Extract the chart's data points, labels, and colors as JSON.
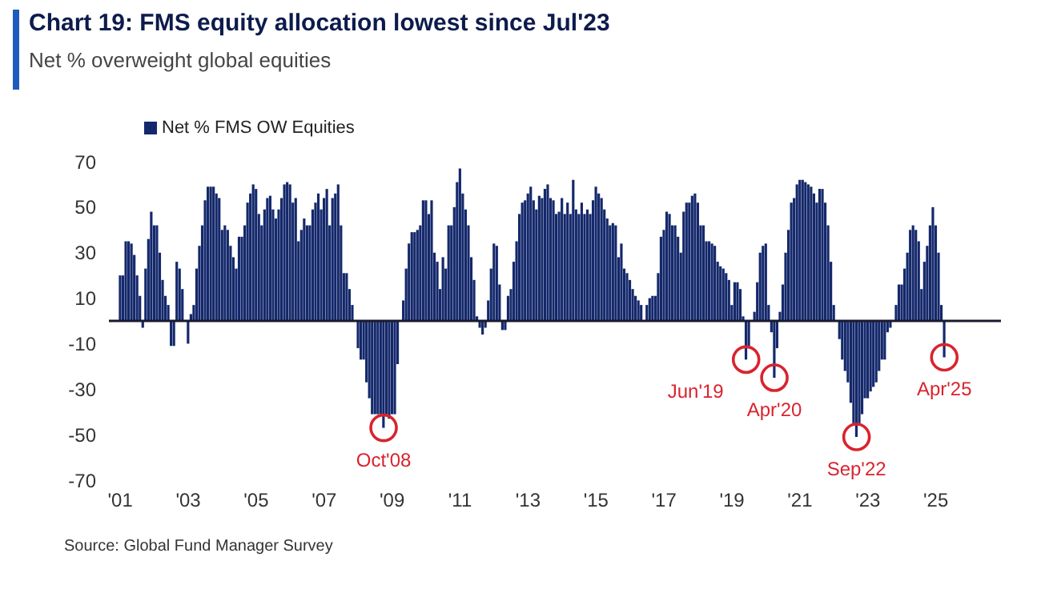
{
  "chart_data": {
    "type": "bar",
    "title": "Chart 19: FMS equity allocation lowest since Jul'23",
    "subtitle": "Net % overweight global equities",
    "x": [
      "2001-01",
      "2001-02",
      "2001-03",
      "2001-04",
      "2001-05",
      "2001-06",
      "2001-07",
      "2001-08",
      "2001-09",
      "2001-10",
      "2001-11",
      "2001-12",
      "2002-01",
      "2002-02",
      "2002-03",
      "2002-04",
      "2002-05",
      "2002-06",
      "2002-07",
      "2002-08",
      "2002-09",
      "2002-10",
      "2002-11",
      "2002-12",
      "2003-01",
      "2003-02",
      "2003-03",
      "2003-04",
      "2003-05",
      "2003-06",
      "2003-07",
      "2003-08",
      "2003-09",
      "2003-10",
      "2003-11",
      "2003-12",
      "2004-01",
      "2004-02",
      "2004-03",
      "2004-04",
      "2004-05",
      "2004-06",
      "2004-07",
      "2004-08",
      "2004-09",
      "2004-10",
      "2004-11",
      "2004-12",
      "2005-01",
      "2005-02",
      "2005-03",
      "2005-04",
      "2005-05",
      "2005-06",
      "2005-07",
      "2005-08",
      "2005-09",
      "2005-10",
      "2005-11",
      "2005-12",
      "2006-01",
      "2006-02",
      "2006-03",
      "2006-04",
      "2006-05",
      "2006-06",
      "2006-07",
      "2006-08",
      "2006-09",
      "2006-10",
      "2006-11",
      "2006-12",
      "2007-01",
      "2007-02",
      "2007-03",
      "2007-04",
      "2007-05",
      "2007-06",
      "2007-07",
      "2007-08",
      "2007-09",
      "2007-10",
      "2007-11",
      "2007-12",
      "2008-01",
      "2008-02",
      "2008-03",
      "2008-04",
      "2008-05",
      "2008-06",
      "2008-07",
      "2008-08",
      "2008-09",
      "2008-10",
      "2008-11",
      "2008-12",
      "2009-01",
      "2009-02",
      "2009-03",
      "2009-04",
      "2009-05",
      "2009-06",
      "2009-07",
      "2009-08",
      "2009-09",
      "2009-10",
      "2009-11",
      "2009-12",
      "2010-01",
      "2010-02",
      "2010-03",
      "2010-04",
      "2010-05",
      "2010-06",
      "2010-07",
      "2010-08",
      "2010-09",
      "2010-10",
      "2010-11",
      "2010-12",
      "2011-01",
      "2011-02",
      "2011-03",
      "2011-04",
      "2011-05",
      "2011-06",
      "2011-07",
      "2011-08",
      "2011-09",
      "2011-10",
      "2011-11",
      "2011-12",
      "2012-01",
      "2012-02",
      "2012-03",
      "2012-04",
      "2012-05",
      "2012-06",
      "2012-07",
      "2012-08",
      "2012-09",
      "2012-10",
      "2012-11",
      "2012-12",
      "2013-01",
      "2013-02",
      "2013-03",
      "2013-04",
      "2013-05",
      "2013-06",
      "2013-07",
      "2013-08",
      "2013-09",
      "2013-10",
      "2013-11",
      "2013-12",
      "2014-01",
      "2014-02",
      "2014-03",
      "2014-04",
      "2014-05",
      "2014-06",
      "2014-07",
      "2014-08",
      "2014-09",
      "2014-10",
      "2014-11",
      "2014-12",
      "2015-01",
      "2015-02",
      "2015-03",
      "2015-04",
      "2015-05",
      "2015-06",
      "2015-07",
      "2015-08",
      "2015-09",
      "2015-10",
      "2015-11",
      "2015-12",
      "2016-01",
      "2016-02",
      "2016-03",
      "2016-04",
      "2016-05",
      "2016-06",
      "2016-07",
      "2016-08",
      "2016-09",
      "2016-10",
      "2016-11",
      "2016-12",
      "2017-01",
      "2017-02",
      "2017-03",
      "2017-04",
      "2017-05",
      "2017-06",
      "2017-07",
      "2017-08",
      "2017-09",
      "2017-10",
      "2017-11",
      "2017-12",
      "2018-01",
      "2018-02",
      "2018-03",
      "2018-04",
      "2018-05",
      "2018-06",
      "2018-07",
      "2018-08",
      "2018-09",
      "2018-10",
      "2018-11",
      "2018-12",
      "2019-01",
      "2019-02",
      "2019-03",
      "2019-04",
      "2019-05",
      "2019-06",
      "2019-07",
      "2019-08",
      "2019-09",
      "2019-10",
      "2019-11",
      "2019-12",
      "2020-01",
      "2020-02",
      "2020-03",
      "2020-04",
      "2020-05",
      "2020-06",
      "2020-07",
      "2020-08",
      "2020-09",
      "2020-10",
      "2020-11",
      "2020-12",
      "2021-01",
      "2021-02",
      "2021-03",
      "2021-04",
      "2021-05",
      "2021-06",
      "2021-07",
      "2021-08",
      "2021-09",
      "2021-10",
      "2021-11",
      "2021-12",
      "2022-01",
      "2022-02",
      "2022-03",
      "2022-04",
      "2022-05",
      "2022-06",
      "2022-07",
      "2022-08",
      "2022-09",
      "2022-10",
      "2022-11",
      "2022-12",
      "2023-01",
      "2023-02",
      "2023-03",
      "2023-04",
      "2023-05",
      "2023-06",
      "2023-07",
      "2023-08",
      "2023-09",
      "2023-10",
      "2023-11",
      "2023-12",
      "2024-01",
      "2024-02",
      "2024-03",
      "2024-04",
      "2024-05",
      "2024-06",
      "2024-07",
      "2024-08",
      "2024-09",
      "2024-10",
      "2024-11",
      "2024-12",
      "2025-01",
      "2025-02",
      "2025-03",
      "2025-04"
    ],
    "series": [
      {
        "name": "Net % FMS OW Equities",
        "color": "#14286b",
        "values": [
          20,
          20,
          35,
          35,
          34,
          29,
          20,
          11,
          -3,
          23,
          36,
          48,
          42,
          42,
          30,
          18,
          11,
          7,
          -11,
          -11,
          26,
          23,
          14,
          0,
          -10,
          3,
          7,
          23,
          33,
          42,
          53,
          59,
          59,
          59,
          56,
          54,
          40,
          42,
          40,
          33,
          28,
          23,
          37,
          37,
          42,
          52,
          56,
          60,
          58,
          47,
          42,
          49,
          54,
          55,
          49,
          45,
          49,
          54,
          60,
          61,
          60,
          52,
          54,
          35,
          40,
          45,
          42,
          42,
          49,
          52,
          56,
          49,
          54,
          58,
          42,
          54,
          56,
          60,
          42,
          21,
          21,
          14,
          7,
          0,
          -12,
          -17,
          -17,
          -27,
          -34,
          -41,
          -41,
          -41,
          -41,
          -47,
          -41,
          -43,
          -41,
          -41,
          -19,
          0,
          9,
          23,
          34,
          39,
          39,
          40,
          42,
          53,
          53,
          47,
          53,
          30,
          26,
          14,
          28,
          23,
          42,
          42,
          50,
          61,
          67,
          56,
          49,
          42,
          28,
          18,
          2,
          -3,
          -6,
          -3,
          9,
          23,
          34,
          33,
          16,
          -4,
          -4,
          11,
          14,
          26,
          35,
          47,
          52,
          53,
          56,
          59,
          53,
          49,
          55,
          54,
          58,
          60,
          54,
          53,
          47,
          48,
          54,
          47,
          52,
          47,
          62,
          49,
          47,
          52,
          47,
          49,
          47,
          53,
          59,
          56,
          54,
          49,
          45,
          42,
          43,
          42,
          28,
          34,
          23,
          21,
          18,
          14,
          11,
          9,
          7,
          0,
          7,
          10,
          11,
          11,
          21,
          37,
          40,
          48,
          47,
          42,
          42,
          37,
          30,
          48,
          52,
          52,
          55,
          56,
          52,
          42,
          42,
          35,
          35,
          34,
          33,
          26,
          24,
          23,
          21,
          18,
          7,
          17,
          17,
          14,
          2,
          -17,
          -12,
          0,
          4,
          17,
          30,
          33,
          34,
          7,
          -5,
          -25,
          -12,
          4,
          16,
          30,
          40,
          52,
          54,
          60,
          62,
          62,
          61,
          60,
          59,
          56,
          52,
          58,
          58,
          52,
          42,
          26,
          7,
          0,
          -8,
          -17,
          -22,
          -27,
          -36,
          -45,
          -51,
          -45,
          -41,
          -34,
          -34,
          -31,
          -29,
          -27,
          -22,
          -17,
          -17,
          -5,
          -3,
          0,
          7,
          16,
          16,
          23,
          30,
          40,
          42,
          40,
          35,
          14,
          26,
          33,
          42,
          50,
          42,
          30,
          7,
          -16
        ]
      }
    ],
    "xlim": [
      "2000-09",
      "2026-12"
    ],
    "xticks": [
      {
        "value": "2001-01",
        "label": "'01"
      },
      {
        "value": "2003-01",
        "label": "'03"
      },
      {
        "value": "2005-01",
        "label": "'05"
      },
      {
        "value": "2007-01",
        "label": "'07"
      },
      {
        "value": "2009-01",
        "label": "'09"
      },
      {
        "value": "2011-01",
        "label": "'11"
      },
      {
        "value": "2013-01",
        "label": "'13"
      },
      {
        "value": "2015-01",
        "label": "'15"
      },
      {
        "value": "2017-01",
        "label": "'17"
      },
      {
        "value": "2019-01",
        "label": "'19"
      },
      {
        "value": "2021-01",
        "label": "'21"
      },
      {
        "value": "2023-01",
        "label": "'23"
      },
      {
        "value": "2025-01",
        "label": "'25"
      }
    ],
    "ylim": [
      -70,
      70
    ],
    "yticks": [
      -70,
      -50,
      -30,
      -10,
      10,
      30,
      50,
      70
    ],
    "ref_lines": [
      {
        "axis": "y",
        "value": 0,
        "color": "#1a1a2e"
      }
    ],
    "legend": "top left",
    "annotations": [
      {
        "text": "Oct'08",
        "x": "2008-10",
        "y": -47
      },
      {
        "text": "Jun'19",
        "x": "2019-06",
        "y": -17
      },
      {
        "text": "Apr'20",
        "x": "2020-04",
        "y": -25
      },
      {
        "text": "Sep'22",
        "x": "2022-09",
        "y": -51
      },
      {
        "text": "Apr'25",
        "x": "2025-04",
        "y": -16
      },
      "Source: Global Fund Manager Survey"
    ]
  }
}
